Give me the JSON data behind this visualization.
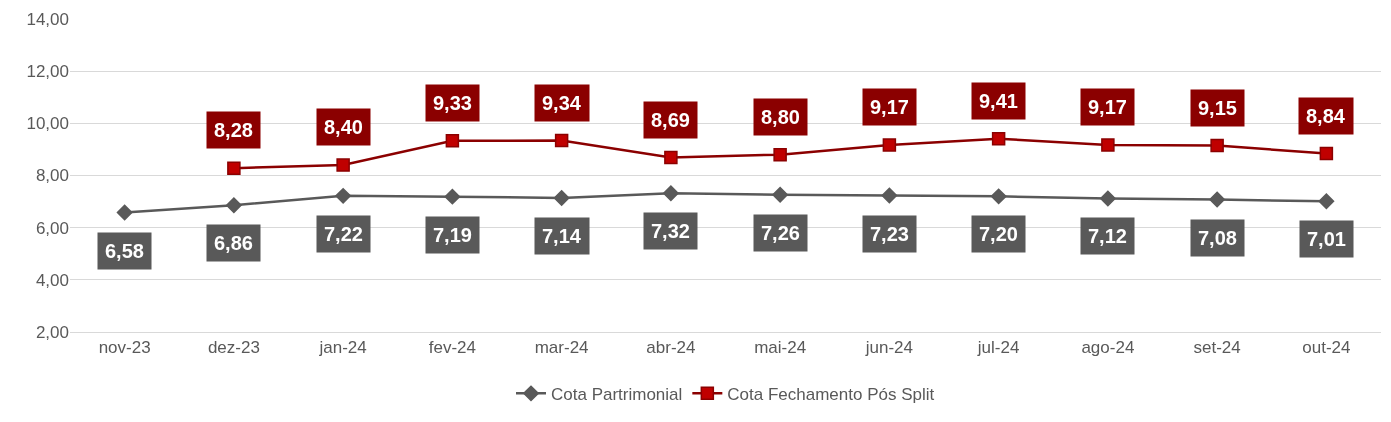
{
  "chart_data": {
    "type": "line",
    "categories": [
      "nov-23",
      "dez-23",
      "jan-24",
      "fev-24",
      "mar-24",
      "abr-24",
      "mai-24",
      "jun-24",
      "jul-24",
      "ago-24",
      "set-24",
      "out-24"
    ],
    "series": [
      {
        "name": "Cota Partrimonial",
        "color": "#595959",
        "marker": "diamond",
        "values": [
          6.58,
          6.86,
          7.22,
          7.19,
          7.14,
          7.32,
          7.26,
          7.23,
          7.2,
          7.12,
          7.08,
          7.01
        ],
        "value_labels": [
          "6,58",
          "6,86",
          "7,22",
          "7,19",
          "7,14",
          "7,32",
          "7,26",
          "7,23",
          "7,20",
          "7,12",
          "7,08",
          "7,01"
        ]
      },
      {
        "name": "Cota Fechamento Pós Split",
        "color": "#8b0000",
        "marker": "square",
        "values": [
          null,
          8.28,
          8.4,
          9.33,
          9.34,
          8.69,
          8.8,
          9.17,
          9.41,
          9.17,
          9.15,
          8.84
        ],
        "value_labels": [
          null,
          "8,28",
          "8,40",
          "9,33",
          "9,34",
          "8,69",
          "8,80",
          "9,17",
          "9,41",
          "9,17",
          "9,15",
          "8,84"
        ]
      }
    ],
    "ylim": [
      2,
      14
    ],
    "yticks": [
      {
        "value": 2,
        "label": "2,00"
      },
      {
        "value": 4,
        "label": "4,00"
      },
      {
        "value": 6,
        "label": "6,00"
      },
      {
        "value": 8,
        "label": "8,00"
      },
      {
        "value": 10,
        "label": "10,00"
      },
      {
        "value": 12,
        "label": "12,00"
      },
      {
        "value": 14,
        "label": "14,00"
      }
    ],
    "grid": "y",
    "legend": "bottom"
  }
}
